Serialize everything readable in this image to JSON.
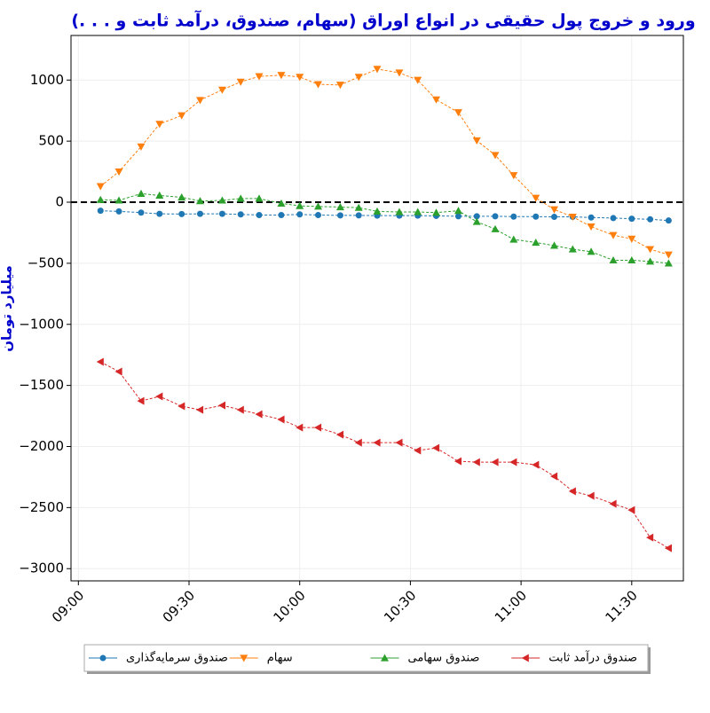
{
  "chart_data": {
    "type": "line",
    "title": "ورود و خروج پول حقیقی در انواع اوراق (سهام، صندوق، درآمد ثابت و . . .)",
    "y_label": "میلیارد تومان",
    "x": [
      "09:06",
      "09:11",
      "09:17",
      "09:22",
      "09:28",
      "09:33",
      "09:39",
      "09:44",
      "09:49",
      "09:55",
      "10:00",
      "10:05",
      "10:11",
      "10:16",
      "10:21",
      "10:27",
      "10:32",
      "10:37",
      "10:43",
      "10:48",
      "10:53",
      "10:58",
      "11:04",
      "11:09",
      "11:14",
      "11:19",
      "11:25",
      "11:30",
      "11:35",
      "11:40"
    ],
    "series": [
      {
        "name": "صندوق سرمایه‌گذاری",
        "color": "#1f77b4",
        "marker": "circle",
        "values": [
          -70,
          -75,
          -85,
          -95,
          -97,
          -95,
          -95,
          -100,
          -105,
          -105,
          -100,
          -105,
          -108,
          -108,
          -110,
          -110,
          -110,
          -112,
          -115,
          -115,
          -115,
          -118,
          -118,
          -120,
          -120,
          -125,
          -130,
          -135,
          -140,
          -150
        ]
      },
      {
        "name": "سهام",
        "color": "#ff7f0e",
        "marker": "triangle-down",
        "values": [
          130,
          250,
          455,
          640,
          710,
          835,
          920,
          985,
          1030,
          1040,
          1025,
          965,
          960,
          1025,
          1090,
          1060,
          1000,
          840,
          735,
          505,
          385,
          220,
          35,
          -60,
          -120,
          -200,
          -270,
          -300,
          -385,
          -430
        ]
      },
      {
        "name": "صندوق سهامی",
        "color": "#2ca02c",
        "marker": "triangle-up",
        "values": [
          20,
          15,
          70,
          55,
          40,
          10,
          15,
          30,
          30,
          -10,
          -30,
          -35,
          -40,
          -45,
          -75,
          -80,
          -80,
          -85,
          -70,
          -160,
          -220,
          -305,
          -330,
          -355,
          -385,
          -405,
          -475,
          -475,
          -485,
          -500
        ]
      },
      {
        "name": "صندوق درآمد ثابت",
        "color": "#d62728",
        "marker": "triangle-left",
        "values": [
          -1307,
          -1387,
          -1627,
          -1590,
          -1670,
          -1700,
          -1663,
          -1700,
          -1736,
          -1779,
          -1845,
          -1845,
          -1903,
          -1968,
          -1968,
          -1968,
          -2033,
          -2012,
          -2121,
          -2128,
          -2128,
          -2128,
          -2150,
          -2244,
          -2367,
          -2404,
          -2469,
          -2520,
          -2745,
          -2832
        ]
      }
    ],
    "xlim": [
      "08:58",
      "11:44"
    ],
    "xticks": [
      "09:00",
      "09:30",
      "10:00",
      "10:30",
      "11:00",
      "11:30"
    ],
    "ylim": [
      -3100,
      1365
    ],
    "yticks": [
      1000,
      500,
      0,
      {
        "value": -500,
        "label": "−500"
      },
      {
        "value": -1000,
        "label": "−1000"
      },
      {
        "value": -1500,
        "label": "−1500"
      },
      {
        "value": -2000,
        "label": "−2000"
      },
      {
        "value": -2500,
        "label": "−2500"
      },
      {
        "value": -3000,
        "label": "−3000"
      }
    ],
    "reference_line": 0,
    "grid": true,
    "legend": "bottom"
  }
}
